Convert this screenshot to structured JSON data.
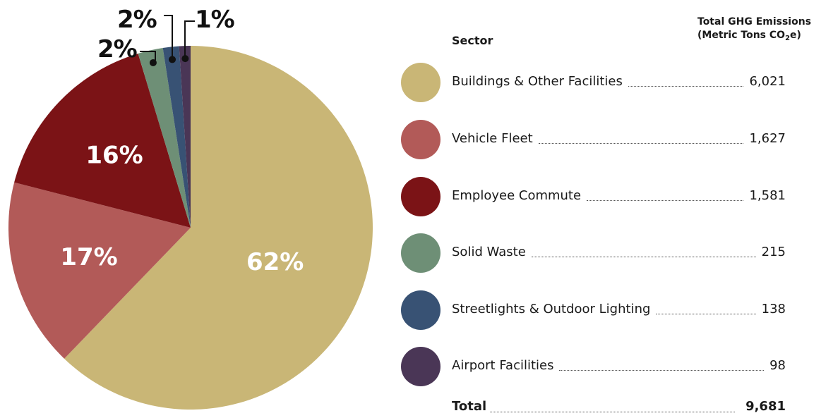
{
  "chart_data": {
    "type": "pie",
    "categories": [
      "Buildings & Other Facilities",
      "Vehicle Fleet",
      "Employee Commute",
      "Solid Waste",
      "Streetlights & Outdoor Lighting",
      "Airport Facilities"
    ],
    "values": [
      6021,
      1627,
      1581,
      215,
      138,
      98
    ],
    "percent_labels": [
      "62%",
      "17%",
      "16%",
      "2%",
      "2%",
      "1%"
    ],
    "colors": [
      "#c9b676",
      "#b25a58",
      "#7b1316",
      "#6e8f76",
      "#385274",
      "#4a3656"
    ],
    "value_labels": [
      "6,021",
      "1,627",
      "1,581",
      "215",
      "138",
      "98"
    ]
  },
  "legend": {
    "sector_header": "Sector",
    "total_header_line1": "Total GHG Emissions",
    "total_header_line2_pre": "(Metric Tons CO",
    "total_header_sub": "2",
    "total_header_line2_post": "e)"
  },
  "total": {
    "label": "Total",
    "value": "9,681"
  }
}
